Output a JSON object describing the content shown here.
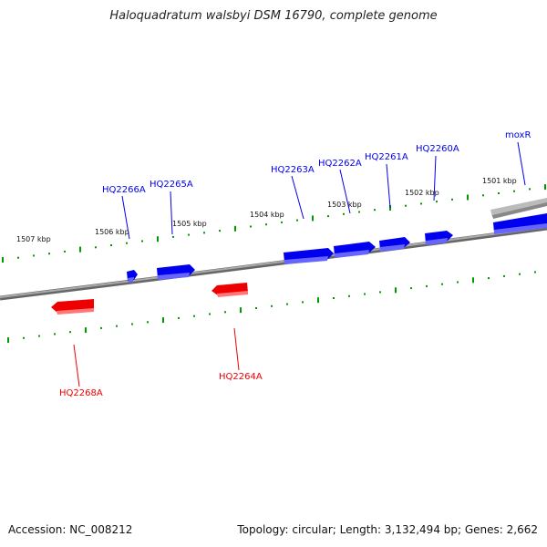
{
  "title": "Haloquadratum walsbyi DSM 16790, complete genome",
  "footer": {
    "accession": "Accession: NC_008212",
    "summary": "Topology: circular; Length: 3,132,494 bp; Genes: 2,662"
  },
  "colors": {
    "forward_gene": "#0000ee",
    "reverse_gene": "#ee0000",
    "backbone": "#888888",
    "ticks": "#009900",
    "other_segment": "#bbbbbb"
  },
  "scale_labels": [
    "1507 kbp",
    "1506 kbp",
    "1505 kbp",
    "1504 kbp",
    "1503 kbp",
    "1502 kbp",
    "1501 kbp"
  ],
  "genes": [
    {
      "label": "HQ2266A",
      "strand": "forward"
    },
    {
      "label": "HQ2265A",
      "strand": "forward"
    },
    {
      "label": "HQ2263A",
      "strand": "forward"
    },
    {
      "label": "HQ2262A",
      "strand": "forward"
    },
    {
      "label": "HQ2261A",
      "strand": "forward"
    },
    {
      "label": "HQ2260A",
      "strand": "forward"
    },
    {
      "label": "moxR",
      "strand": "forward"
    },
    {
      "label": "HQ2268A",
      "strand": "reverse"
    },
    {
      "label": "HQ2264A",
      "strand": "reverse"
    }
  ]
}
